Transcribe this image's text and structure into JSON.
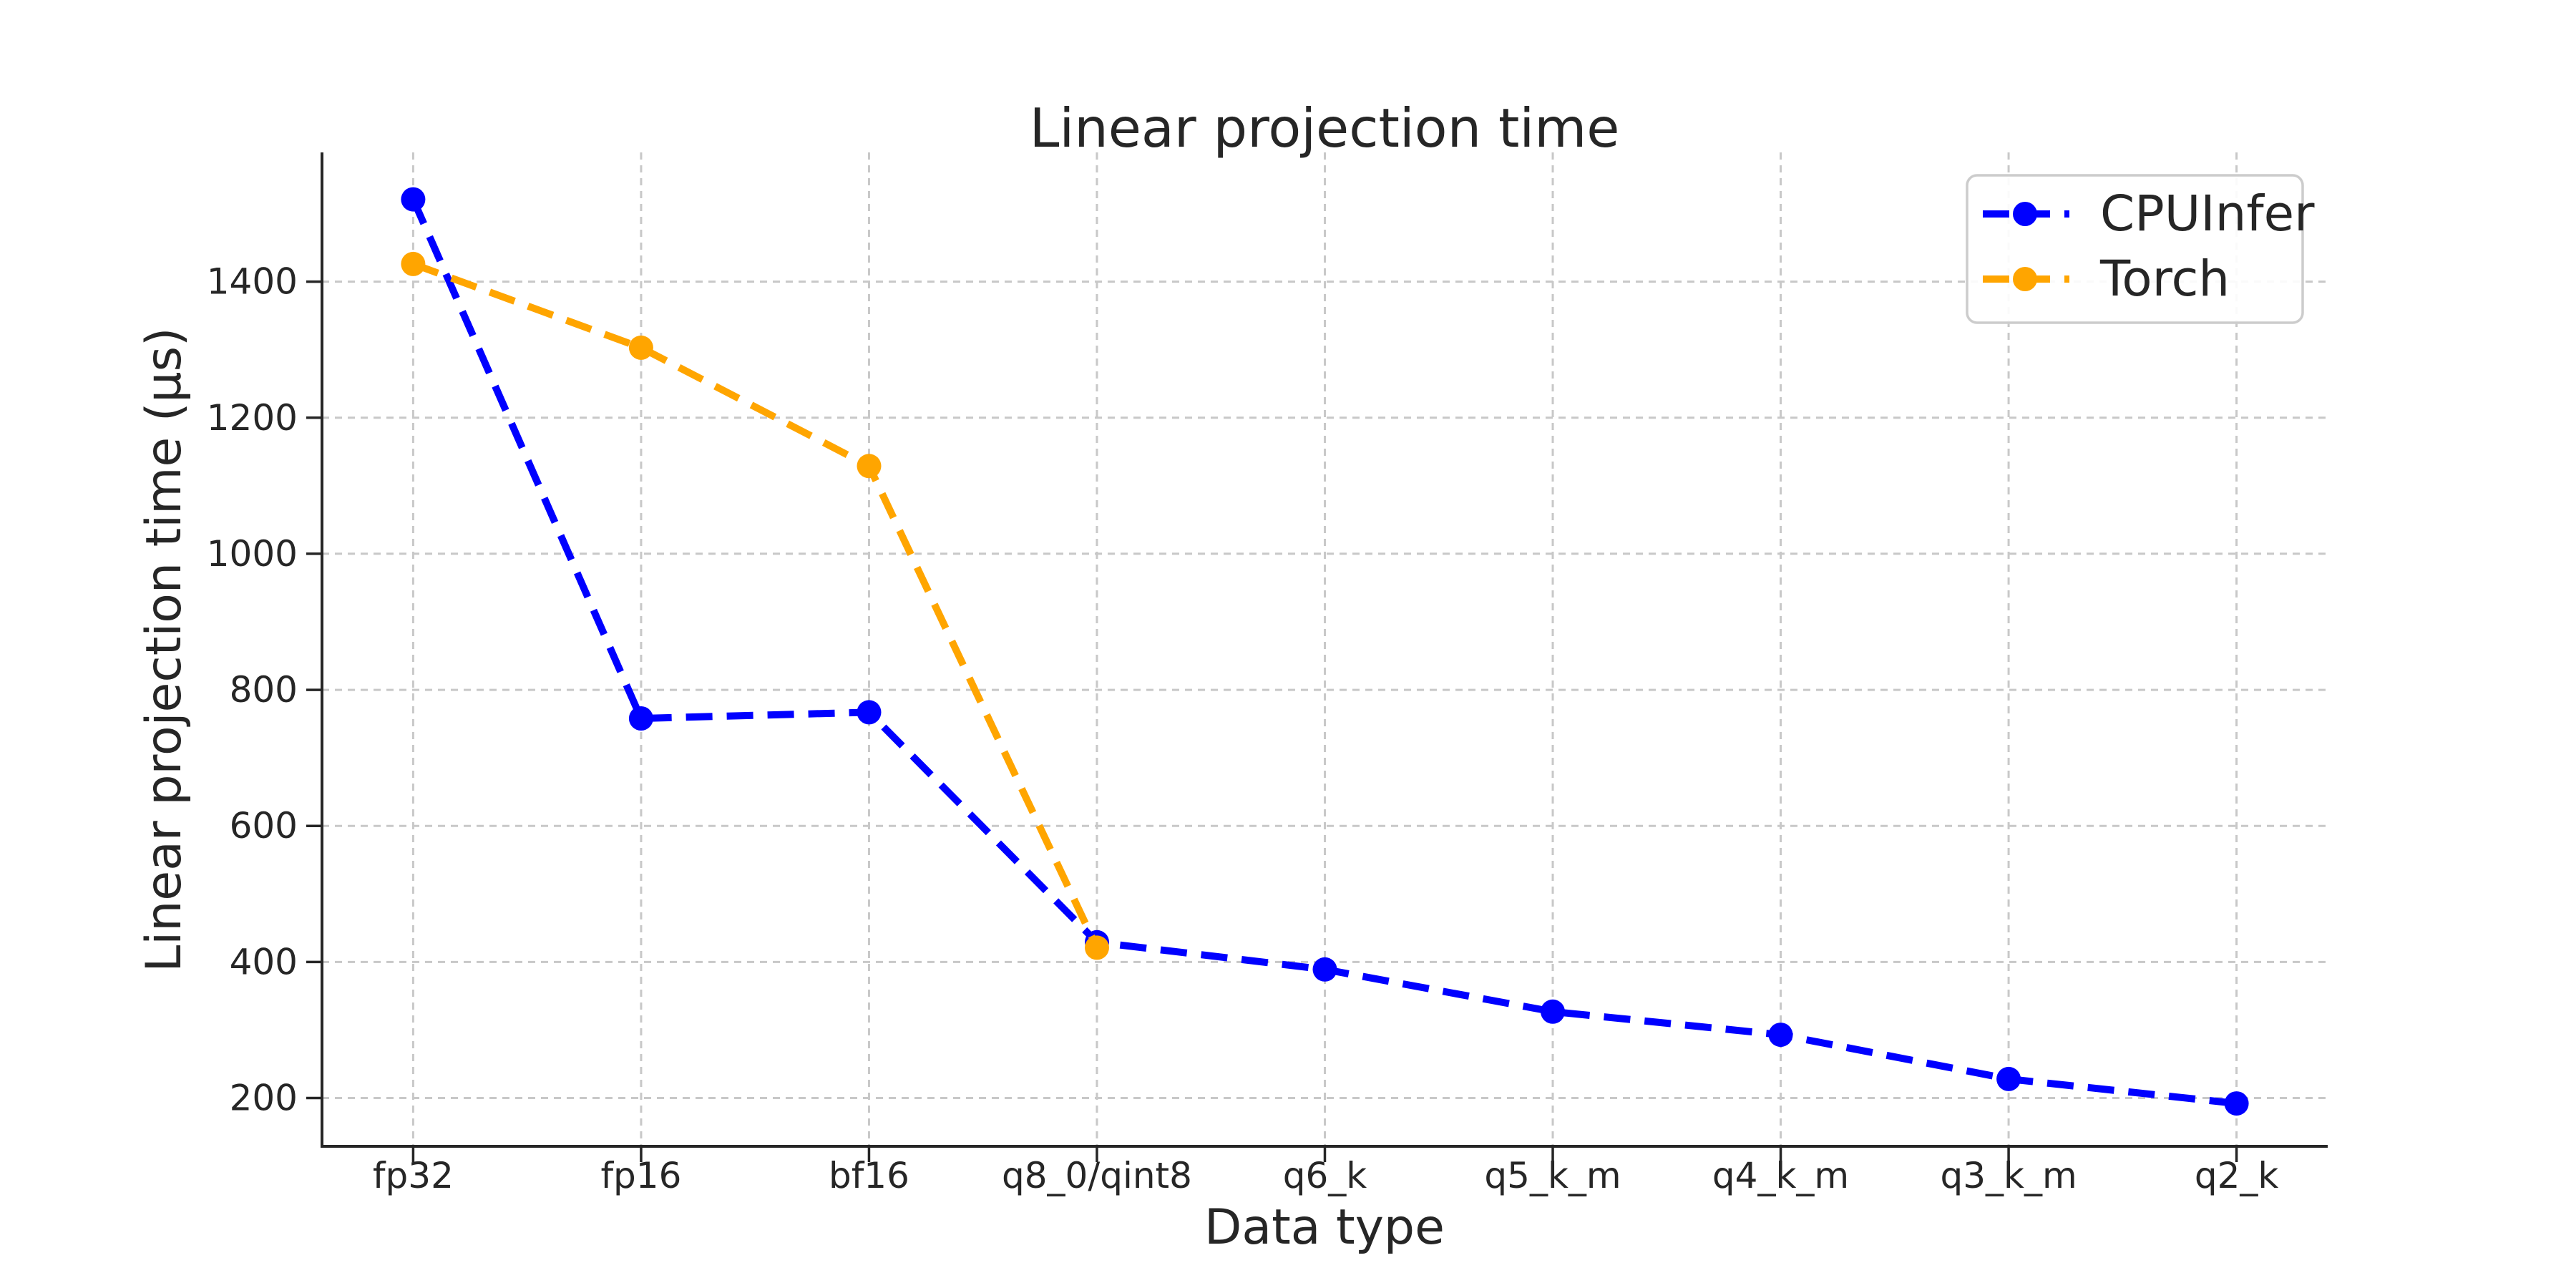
{
  "chart_data": {
    "type": "line",
    "title": "Linear projection time",
    "xlabel": "Data type",
    "ylabel": "Linear projection time (µs)",
    "categories": [
      "fp32",
      "fp16",
      "bf16",
      "q8_0/qint8",
      "q6_k",
      "q5_k_m",
      "q4_k_m",
      "q3_k_m",
      "q2_k"
    ],
    "series": [
      {
        "name": "CPUInfer",
        "color": "#0000ff",
        "values": [
          1521,
          758,
          767,
          429,
          389,
          327,
          293,
          228,
          192
        ]
      },
      {
        "name": "Torch",
        "color": "#ffa500",
        "values": [
          1426,
          1303,
          1129,
          421
        ]
      }
    ],
    "yticks": [
      200,
      400,
      600,
      800,
      1000,
      1200,
      1400
    ],
    "ylim": [
      129,
      1590
    ],
    "xlim": [
      -0.4,
      8.4
    ],
    "grid": true,
    "grid_style": "dashed",
    "line_style": "dashed",
    "marker": "circle",
    "legend_position": "upper right",
    "colors": {
      "grid": "#c8c8c8",
      "text": "#262626",
      "spine": "#262626",
      "legend_border": "#cccccc",
      "background": "#ffffff"
    }
  }
}
